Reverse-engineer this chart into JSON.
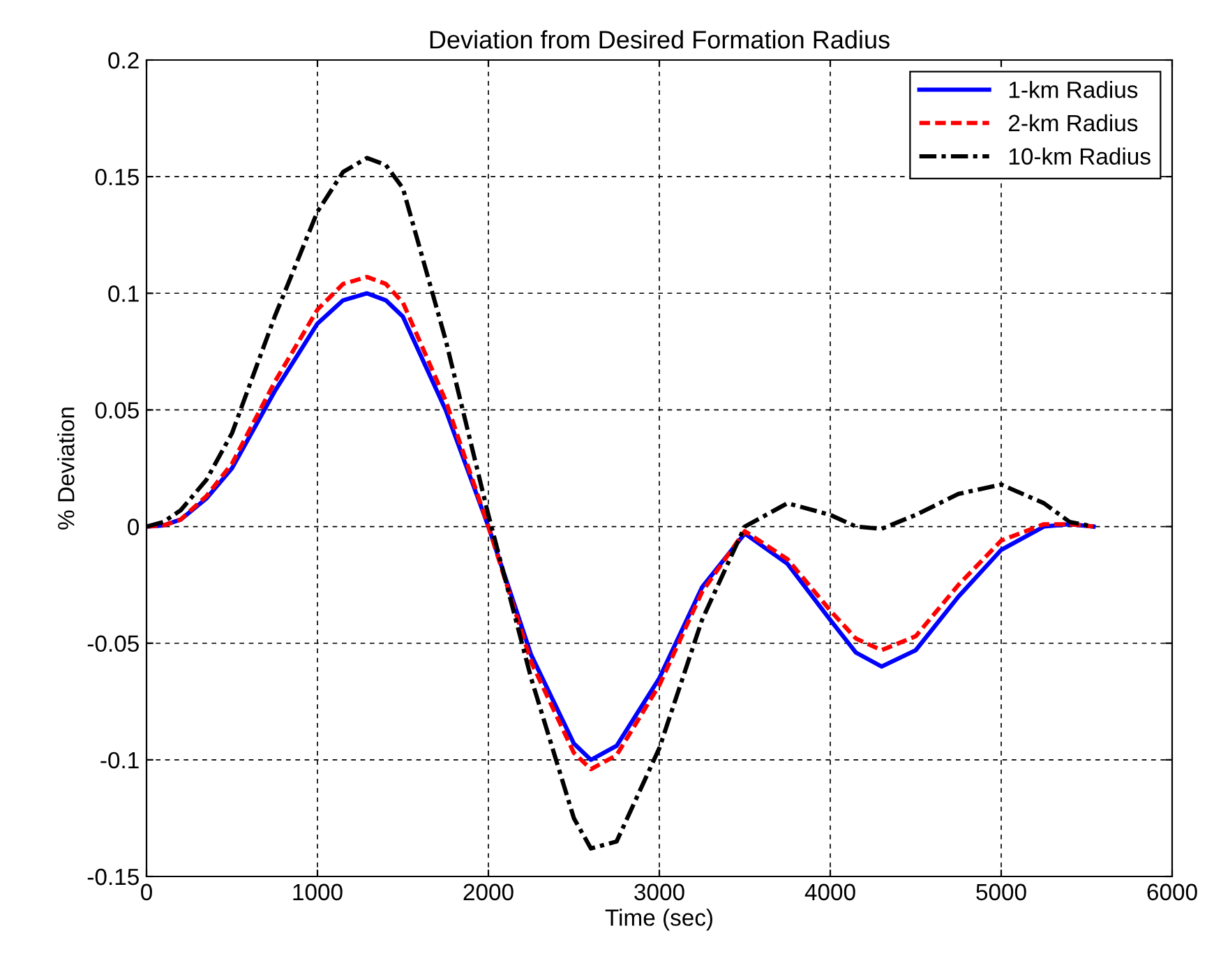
{
  "chart_data": {
    "type": "line",
    "title": "Deviation from Desired Formation Radius",
    "xlabel": "Time (sec)",
    "ylabel": "% Deviation",
    "x": [
      0,
      100,
      200,
      350,
      500,
      750,
      1000,
      1150,
      1290,
      1400,
      1500,
      1750,
      2000,
      2250,
      2500,
      2600,
      2750,
      3000,
      3250,
      3500,
      3750,
      4000,
      4150,
      4300,
      4500,
      4750,
      5000,
      5250,
      5400,
      5540
    ],
    "series": [
      {
        "name": "1-km Radius",
        "color": "#0000ff",
        "line_style": "solid",
        "values": [
          0,
          0.0005,
          0.003,
          0.012,
          0.025,
          0.058,
          0.087,
          0.097,
          0.1,
          0.097,
          0.09,
          0.05,
          0.0,
          -0.055,
          -0.093,
          -0.1,
          -0.094,
          -0.065,
          -0.026,
          -0.003,
          -0.016,
          -0.04,
          -0.054,
          -0.06,
          -0.053,
          -0.03,
          -0.01,
          0.0,
          0.001,
          0
        ]
      },
      {
        "name": "2-km Radius",
        "color": "#ff0000",
        "line_style": "dashed",
        "values": [
          0,
          0.0005,
          0.003,
          0.013,
          0.027,
          0.062,
          0.093,
          0.104,
          0.107,
          0.104,
          0.096,
          0.054,
          0.0,
          -0.058,
          -0.097,
          -0.104,
          -0.098,
          -0.068,
          -0.028,
          -0.002,
          -0.014,
          -0.036,
          -0.048,
          -0.053,
          -0.047,
          -0.025,
          -0.006,
          0.001,
          0.001,
          0
        ]
      },
      {
        "name": "10-km Radius",
        "color": "#000000",
        "line_style": "dashdot",
        "values": [
          0,
          0.002,
          0.007,
          0.02,
          0.04,
          0.09,
          0.135,
          0.152,
          0.158,
          0.155,
          0.145,
          0.08,
          0.005,
          -0.065,
          -0.125,
          -0.138,
          -0.135,
          -0.095,
          -0.04,
          0.0,
          0.01,
          0.005,
          0.0,
          -0.001,
          0.005,
          0.014,
          0.018,
          0.01,
          0.002,
          0
        ]
      }
    ],
    "xlim": [
      0,
      6000
    ],
    "xticks": [
      0,
      1000,
      2000,
      3000,
      4000,
      5000,
      6000
    ],
    "ylim": [
      -0.15,
      0.2
    ],
    "yticks": [
      -0.15,
      -0.1,
      -0.05,
      0,
      0.05,
      0.1,
      0.15,
      0.2
    ],
    "grid": true,
    "legend": "top right"
  }
}
